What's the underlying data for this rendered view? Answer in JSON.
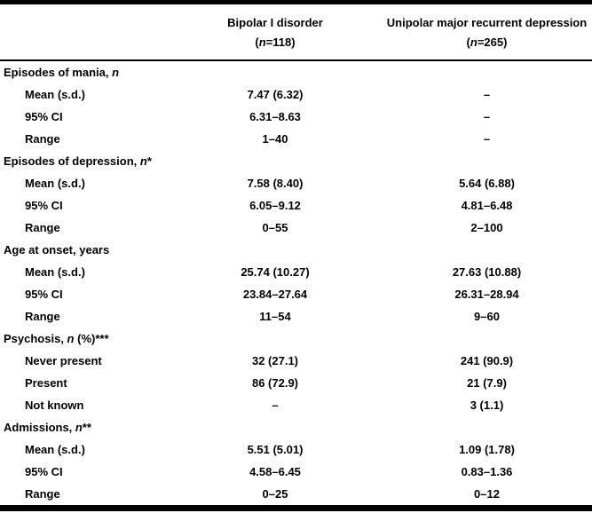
{
  "table": {
    "columns": [
      {
        "title": "Bipolar I disorder",
        "n_parts": [
          {
            "t": "("
          },
          {
            "t": "n",
            "i": true
          },
          {
            "t": "=118)"
          }
        ]
      },
      {
        "title": "Unipolar major recurrent depression",
        "n_parts": [
          {
            "t": "("
          },
          {
            "t": "n",
            "i": true
          },
          {
            "t": "=265)"
          }
        ]
      }
    ],
    "rows": [
      {
        "type": "section",
        "label_parts": [
          {
            "t": "Episodes of mania, "
          },
          {
            "t": "n",
            "i": true
          }
        ],
        "bipolar": "",
        "unipolar": ""
      },
      {
        "type": "sub",
        "label_parts": [
          {
            "t": "Mean (s.d.)"
          }
        ],
        "bipolar": "7.47 (6.32)",
        "unipolar": "–"
      },
      {
        "type": "sub",
        "label_parts": [
          {
            "t": "95% CI"
          }
        ],
        "bipolar": "6.31–8.63",
        "unipolar": "–"
      },
      {
        "type": "sub",
        "label_parts": [
          {
            "t": "Range"
          }
        ],
        "bipolar": "1–40",
        "unipolar": "–"
      },
      {
        "type": "section",
        "label_parts": [
          {
            "t": "Episodes of depression, "
          },
          {
            "t": "n",
            "i": true
          },
          {
            "t": "*"
          }
        ],
        "bipolar": "",
        "unipolar": ""
      },
      {
        "type": "sub",
        "label_parts": [
          {
            "t": "Mean (s.d.)"
          }
        ],
        "bipolar": "7.58 (8.40)",
        "unipolar": "5.64 (6.88)"
      },
      {
        "type": "sub",
        "label_parts": [
          {
            "t": "95% CI"
          }
        ],
        "bipolar": "6.05–9.12",
        "unipolar": "4.81–6.48"
      },
      {
        "type": "sub",
        "label_parts": [
          {
            "t": "Range"
          }
        ],
        "bipolar": "0–55",
        "unipolar": "2–100"
      },
      {
        "type": "section",
        "label_parts": [
          {
            "t": "Age at onset, years"
          }
        ],
        "bipolar": "",
        "unipolar": ""
      },
      {
        "type": "sub",
        "label_parts": [
          {
            "t": "Mean (s.d.)"
          }
        ],
        "bipolar": "25.74 (10.27)",
        "unipolar": "27.63 (10.88)"
      },
      {
        "type": "sub",
        "label_parts": [
          {
            "t": "95% CI"
          }
        ],
        "bipolar": "23.84–27.64",
        "unipolar": "26.31–28.94"
      },
      {
        "type": "sub",
        "label_parts": [
          {
            "t": "Range"
          }
        ],
        "bipolar": "11–54",
        "unipolar": "9–60"
      },
      {
        "type": "section",
        "label_parts": [
          {
            "t": "Psychosis, "
          },
          {
            "t": "n",
            "i": true
          },
          {
            "t": " (%)***"
          }
        ],
        "bipolar": "",
        "unipolar": ""
      },
      {
        "type": "sub",
        "label_parts": [
          {
            "t": "Never present"
          }
        ],
        "bipolar": "32 (27.1)",
        "unipolar": "241 (90.9)"
      },
      {
        "type": "sub",
        "label_parts": [
          {
            "t": "Present"
          }
        ],
        "bipolar": "86 (72.9)",
        "unipolar": "21 (7.9)"
      },
      {
        "type": "sub",
        "label_parts": [
          {
            "t": "Not known"
          }
        ],
        "bipolar": "–",
        "unipolar": "3 (1.1)"
      },
      {
        "type": "section",
        "label_parts": [
          {
            "t": "Admissions, "
          },
          {
            "t": "n",
            "i": true
          },
          {
            "t": "**"
          }
        ],
        "bipolar": "",
        "unipolar": ""
      },
      {
        "type": "sub",
        "label_parts": [
          {
            "t": "Mean (s.d.)"
          }
        ],
        "bipolar": "5.51 (5.01)",
        "unipolar": "1.09 (1.78)"
      },
      {
        "type": "sub",
        "label_parts": [
          {
            "t": "95% CI"
          }
        ],
        "bipolar": "4.58–6.45",
        "unipolar": "0.83–1.36"
      },
      {
        "type": "sub",
        "label_parts": [
          {
            "t": "Range"
          }
        ],
        "bipolar": "0–25",
        "unipolar": "0–12"
      }
    ],
    "colors": {
      "text": "#000000",
      "background": "#ffffff",
      "rule": "#000000"
    }
  }
}
